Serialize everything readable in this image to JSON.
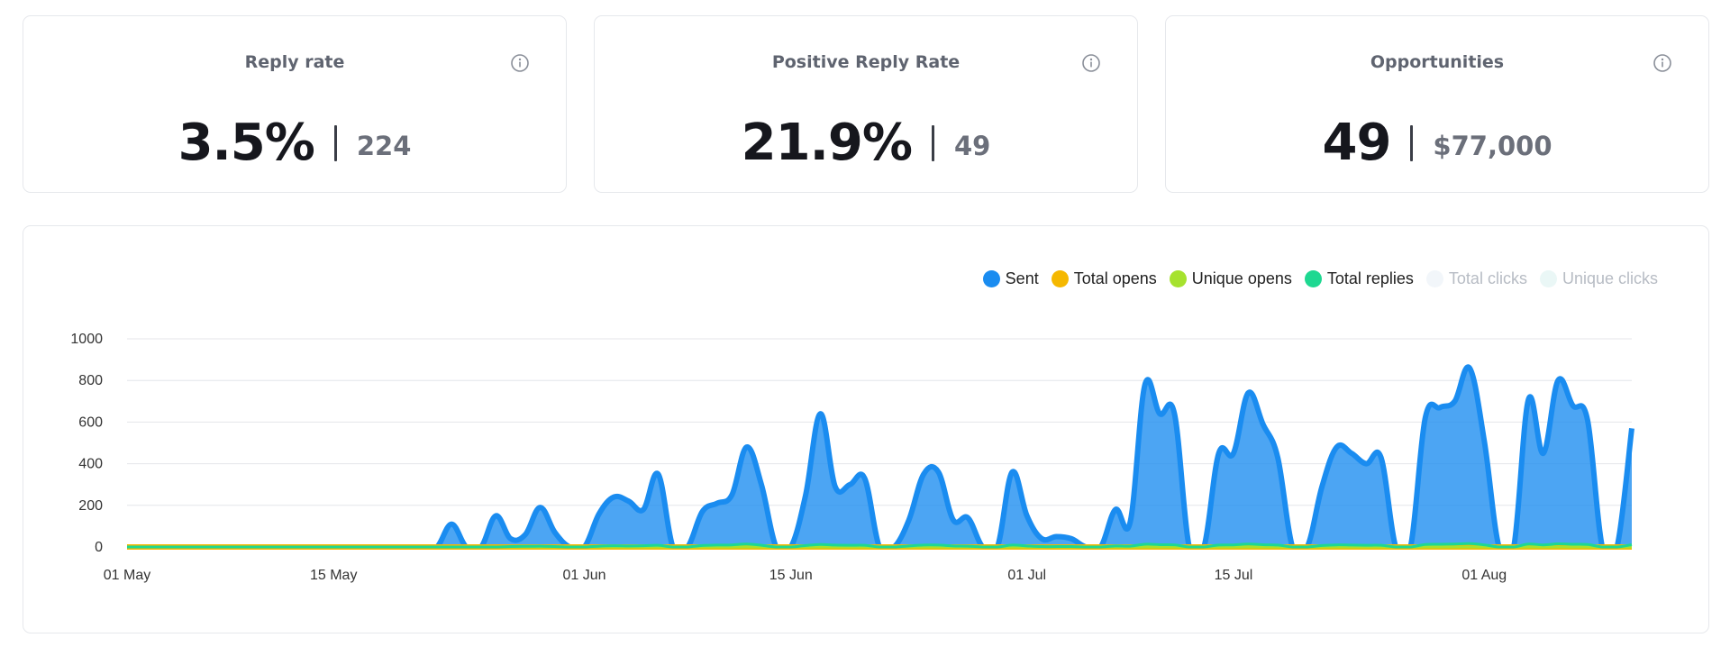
{
  "cards": [
    {
      "title": "Reply rate",
      "value": "3.5%",
      "sub": "224"
    },
    {
      "title": "Positive Reply Rate",
      "value": "21.9%",
      "sub": "49"
    },
    {
      "title": "Opportunities",
      "value": "49",
      "sub": "$77,000"
    }
  ],
  "legend": [
    {
      "label": "Sent",
      "color": "#1a8cf0",
      "active": true
    },
    {
      "label": "Total opens",
      "color": "#f5b800",
      "active": true
    },
    {
      "label": "Unique opens",
      "color": "#a6e22e",
      "active": true
    },
    {
      "label": "Total replies",
      "color": "#1ed891",
      "active": true
    },
    {
      "label": "Total clicks",
      "color": "#f2f6fa",
      "active": false
    },
    {
      "label": "Unique clicks",
      "color": "#eaf7f6",
      "active": false
    }
  ],
  "chart_data": {
    "type": "area",
    "x": [
      "01 May",
      "02 May",
      "03 May",
      "04 May",
      "05 May",
      "06 May",
      "07 May",
      "08 May",
      "09 May",
      "10 May",
      "11 May",
      "12 May",
      "13 May",
      "14 May",
      "15 May",
      "16 May",
      "17 May",
      "18 May",
      "19 May",
      "20 May",
      "21 May",
      "22 May",
      "23 May",
      "24 May",
      "25 May",
      "26 May",
      "27 May",
      "28 May",
      "29 May",
      "30 May",
      "31 May",
      "01 Jun",
      "02 Jun",
      "03 Jun",
      "04 Jun",
      "05 Jun",
      "06 Jun",
      "07 Jun",
      "08 Jun",
      "09 Jun",
      "10 Jun",
      "11 Jun",
      "12 Jun",
      "13 Jun",
      "14 Jun",
      "15 Jun",
      "16 Jun",
      "17 Jun",
      "18 Jun",
      "19 Jun",
      "20 Jun",
      "21 Jun",
      "22 Jun",
      "23 Jun",
      "24 Jun",
      "25 Jun",
      "26 Jun",
      "27 Jun",
      "28 Jun",
      "29 Jun",
      "30 Jun",
      "01 Jul",
      "02 Jul",
      "03 Jul",
      "04 Jul",
      "05 Jul",
      "06 Jul",
      "07 Jul",
      "08 Jul",
      "09 Jul",
      "10 Jul",
      "11 Jul",
      "12 Jul",
      "13 Jul",
      "14 Jul",
      "15 Jul",
      "16 Jul",
      "17 Jul",
      "18 Jul",
      "19 Jul",
      "20 Jul",
      "21 Jul",
      "22 Jul",
      "23 Jul",
      "24 Jul",
      "25 Jul",
      "26 Jul",
      "27 Jul",
      "28 Jul",
      "29 Jul",
      "30 Jul",
      "31 Jul",
      "01 Aug",
      "02 Aug",
      "03 Aug",
      "04 Aug",
      "05 Aug",
      "06 Aug",
      "07 Aug",
      "08 Aug",
      "09 Aug",
      "10 Aug",
      "11 Aug"
    ],
    "series": [
      {
        "name": "Sent",
        "color": "#1a8cf0",
        "values": [
          0,
          0,
          0,
          0,
          0,
          0,
          0,
          0,
          0,
          0,
          0,
          0,
          0,
          0,
          0,
          0,
          0,
          0,
          0,
          0,
          0,
          0,
          110,
          0,
          0,
          150,
          40,
          60,
          190,
          70,
          0,
          0,
          160,
          240,
          220,
          180,
          350,
          0,
          0,
          170,
          210,
          250,
          480,
          300,
          0,
          0,
          250,
          640,
          290,
          300,
          330,
          0,
          0,
          130,
          350,
          360,
          130,
          140,
          0,
          0,
          360,
          150,
          40,
          50,
          40,
          0,
          0,
          180,
          120,
          780,
          640,
          640,
          0,
          0,
          450,
          450,
          740,
          590,
          430,
          0,
          0,
          290,
          480,
          450,
          400,
          430,
          0,
          0,
          620,
          670,
          700,
          860,
          510,
          0,
          0,
          710,
          450,
          800,
          680,
          610,
          0,
          0,
          570
        ]
      },
      {
        "name": "Total opens",
        "color": "#f5b800",
        "values": [
          0,
          0,
          0,
          0,
          0,
          0,
          0,
          0,
          0,
          0,
          0,
          0,
          0,
          0,
          0,
          0,
          0,
          0,
          0,
          0,
          0,
          0,
          0,
          0,
          0,
          0,
          0,
          0,
          0,
          0,
          0,
          0,
          0,
          0,
          0,
          0,
          0,
          0,
          0,
          0,
          0,
          0,
          0,
          0,
          0,
          0,
          0,
          0,
          0,
          0,
          0,
          0,
          0,
          0,
          0,
          0,
          0,
          0,
          0,
          0,
          0,
          0,
          0,
          0,
          0,
          0,
          0,
          0,
          0,
          0,
          0,
          0,
          0,
          0,
          0,
          0,
          0,
          0,
          0,
          0,
          0,
          0,
          0,
          0,
          0,
          0,
          0,
          0,
          0,
          0,
          0,
          0,
          0,
          0,
          0,
          0,
          0,
          0,
          0,
          0,
          0,
          0,
          0
        ]
      },
      {
        "name": "Unique opens",
        "color": "#a6e22e",
        "values": [
          0,
          0,
          0,
          0,
          0,
          0,
          0,
          0,
          0,
          0,
          0,
          0,
          0,
          0,
          0,
          0,
          0,
          0,
          0,
          0,
          0,
          0,
          0,
          0,
          0,
          0,
          0,
          0,
          0,
          0,
          0,
          0,
          0,
          0,
          0,
          0,
          0,
          0,
          0,
          0,
          0,
          0,
          0,
          0,
          0,
          0,
          0,
          0,
          0,
          0,
          0,
          0,
          0,
          0,
          0,
          0,
          0,
          0,
          0,
          0,
          0,
          0,
          0,
          0,
          0,
          0,
          0,
          0,
          0,
          0,
          0,
          0,
          0,
          0,
          0,
          0,
          0,
          0,
          0,
          0,
          0,
          0,
          0,
          0,
          0,
          0,
          0,
          0,
          0,
          0,
          0,
          0,
          0,
          0,
          0,
          0,
          0,
          0,
          0,
          0,
          0,
          0,
          0
        ]
      },
      {
        "name": "Total replies",
        "color": "#1ed891",
        "values": [
          0,
          0,
          0,
          0,
          0,
          0,
          0,
          0,
          0,
          0,
          0,
          0,
          0,
          0,
          0,
          0,
          0,
          0,
          0,
          0,
          0,
          0,
          0,
          0,
          0,
          0,
          2,
          3,
          4,
          2,
          0,
          0,
          4,
          6,
          5,
          6,
          8,
          0,
          0,
          7,
          9,
          10,
          14,
          8,
          0,
          0,
          7,
          12,
          9,
          8,
          8,
          0,
          0,
          5,
          9,
          9,
          5,
          4,
          0,
          0,
          9,
          5,
          2,
          2,
          2,
          0,
          0,
          5,
          4,
          13,
          11,
          10,
          0,
          0,
          9,
          10,
          14,
          11,
          9,
          0,
          0,
          7,
          10,
          9,
          8,
          8,
          0,
          0,
          12,
          13,
          14,
          16,
          10,
          0,
          0,
          14,
          10,
          15,
          13,
          12,
          0,
          0,
          11
        ]
      }
    ],
    "yticks": [
      0,
      200,
      400,
      600,
      800,
      1000
    ],
    "ylim": [
      0,
      1000
    ],
    "xticks": [
      "01 May",
      "15 May",
      "01 Jun",
      "15 Jun",
      "01 Jul",
      "15 Jul",
      "01 Aug"
    ],
    "grid": true,
    "legend_position": "top-right"
  }
}
